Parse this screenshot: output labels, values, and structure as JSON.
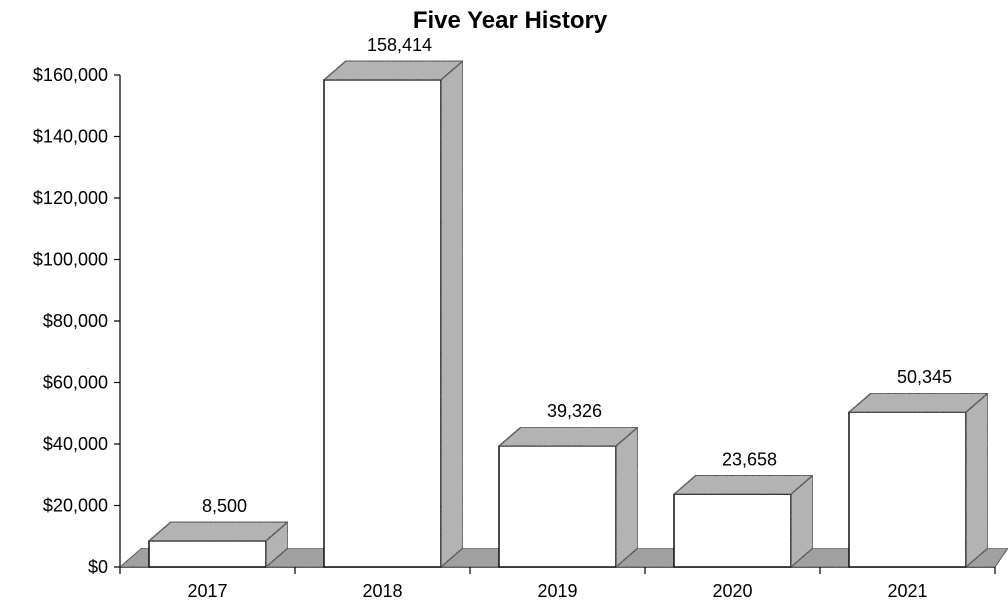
{
  "chart_data": {
    "type": "bar",
    "title": "Five Year History",
    "xlabel": "",
    "ylabel": "",
    "categories": [
      "2017",
      "2018",
      "2019",
      "2020",
      "2021"
    ],
    "values": [
      8500,
      158414,
      39326,
      23658,
      50345
    ],
    "value_labels": [
      "8,500",
      "158,414",
      "39,326",
      "23,658",
      "50,345"
    ],
    "ylim": [
      0,
      160000
    ],
    "yticks": [
      0,
      20000,
      40000,
      60000,
      80000,
      100000,
      120000,
      140000,
      160000
    ],
    "ytick_labels": [
      "$0",
      "$20,000",
      "$40,000",
      "$60,000",
      "$80,000",
      "$100,000",
      "$120,000",
      "$140,000",
      "$160,000"
    ],
    "grid": false,
    "legend": "none",
    "style": "3d"
  },
  "colors": {
    "bar_front": "#ffffff",
    "bar_shading": "#b4b4b4",
    "floor_shading": "#9a9a9a",
    "stroke": "#000000"
  }
}
